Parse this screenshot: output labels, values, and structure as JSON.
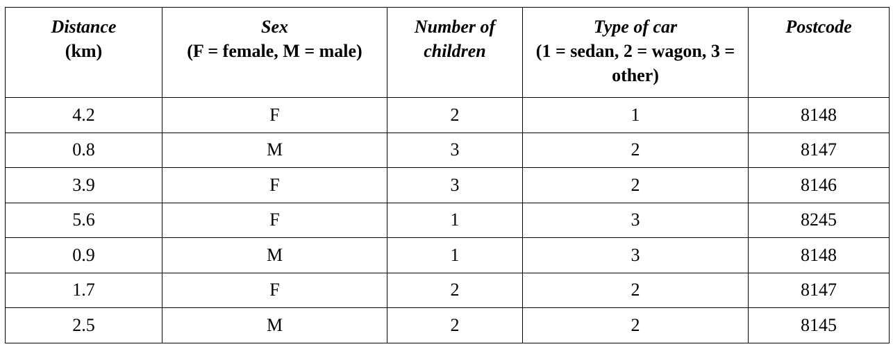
{
  "table": {
    "header": [
      {
        "title": "Distance",
        "note": "(km)"
      },
      {
        "title": "Sex",
        "note": "(F = female, M = male)"
      },
      {
        "title": "Number of children"
      },
      {
        "title": "Type of car",
        "note": "(1 = sedan, 2 = wagon, 3 = other)"
      },
      {
        "title": "Postcode"
      }
    ],
    "rows": [
      [
        "4.2",
        "F",
        "2",
        "1",
        "8148"
      ],
      [
        "0.8",
        "M",
        "3",
        "2",
        "8147"
      ],
      [
        "3.9",
        "F",
        "3",
        "2",
        "8146"
      ],
      [
        "5.6",
        "F",
        "1",
        "3",
        "8245"
      ],
      [
        "0.9",
        "M",
        "1",
        "3",
        "8148"
      ],
      [
        "1.7",
        "F",
        "2",
        "2",
        "8147"
      ],
      [
        "2.5",
        "M",
        "2",
        "2",
        "8145"
      ]
    ]
  }
}
